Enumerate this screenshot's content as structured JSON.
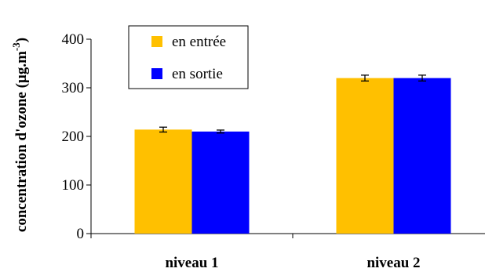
{
  "chart_data": {
    "type": "bar",
    "categories": [
      "niveau 1",
      "niveau 2"
    ],
    "series": [
      {
        "name": "en entrée",
        "color": "#FFC000",
        "values": [
          214,
          320
        ],
        "errors": [
          5,
          6
        ]
      },
      {
        "name": "en sortie",
        "color": "#0000FF",
        "values": [
          210,
          320
        ],
        "errors": [
          3,
          6
        ]
      }
    ],
    "ylabel_main": "concentration d'ozone (µg.m",
    "ylabel_sup": "-3",
    "ylabel_end": ")",
    "ylim": [
      0,
      400
    ],
    "yticks": [
      "0",
      "100",
      "200",
      "300",
      "400"
    ],
    "grid": false,
    "legend_position": "top-left"
  }
}
